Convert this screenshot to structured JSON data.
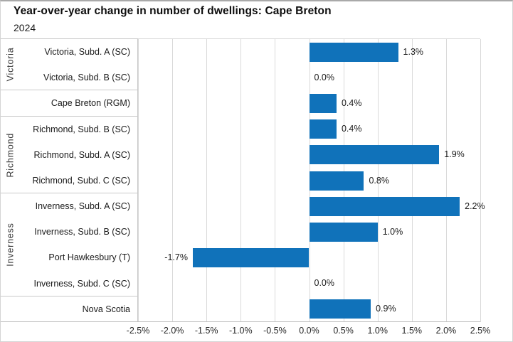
{
  "title": "Year-over-year change in number of dwellings: Cape Breton",
  "subtitle": "2024",
  "colors": {
    "bar": "#1072BA",
    "grid": "#D9D9D9",
    "box_border": "#C9C9C9",
    "axis_line": "#BFBFBF"
  },
  "chart_data": {
    "type": "bar",
    "orientation": "horizontal",
    "title": "Year-over-year change in number of dwellings: Cape Breton",
    "subtitle": "2024",
    "xlabel": "",
    "ylabel": "",
    "xlim": [
      -2.5,
      2.5
    ],
    "grid": true,
    "x_ticks": [
      "-2.5%",
      "-2.0%",
      "-1.5%",
      "-1.0%",
      "-0.5%",
      "0.0%",
      "0.5%",
      "1.0%",
      "1.5%",
      "2.0%",
      "2.5%"
    ],
    "x_tick_values": [
      -2.5,
      -2.0,
      -1.5,
      -1.0,
      -0.5,
      0.0,
      0.5,
      1.0,
      1.5,
      2.0,
      2.5
    ],
    "rows": [
      {
        "group": "Victoria",
        "label": "Victoria, Subd. A (SC)",
        "value": 1.3,
        "value_label": "1.3%"
      },
      {
        "group": "Victoria",
        "label": "Victoria, Subd. B (SC)",
        "value": 0.0,
        "value_label": "0.0%"
      },
      {
        "group": "",
        "label": "Cape Breton (RGM)",
        "value": 0.4,
        "value_label": "0.4%"
      },
      {
        "group": "Richmond",
        "label": "Richmond, Subd. B (SC)",
        "value": 0.4,
        "value_label": "0.4%"
      },
      {
        "group": "Richmond",
        "label": "Richmond, Subd. A (SC)",
        "value": 1.9,
        "value_label": "1.9%"
      },
      {
        "group": "Richmond",
        "label": "Richmond, Subd. C (SC)",
        "value": 0.8,
        "value_label": "0.8%"
      },
      {
        "group": "Inverness",
        "label": "Inverness, Subd. A (SC)",
        "value": 2.2,
        "value_label": "2.2%"
      },
      {
        "group": "Inverness",
        "label": "Inverness, Subd. B (SC)",
        "value": 1.0,
        "value_label": "1.0%"
      },
      {
        "group": "Inverness",
        "label": "Port Hawkesbury (T)",
        "value": -1.7,
        "value_label": "-1.7%"
      },
      {
        "group": "Inverness",
        "label": "Inverness, Subd. C (SC)",
        "value": 0.0,
        "value_label": "0.0%"
      },
      {
        "group": "",
        "label": "Nova Scotia",
        "value": 0.9,
        "value_label": "0.9%"
      }
    ]
  }
}
